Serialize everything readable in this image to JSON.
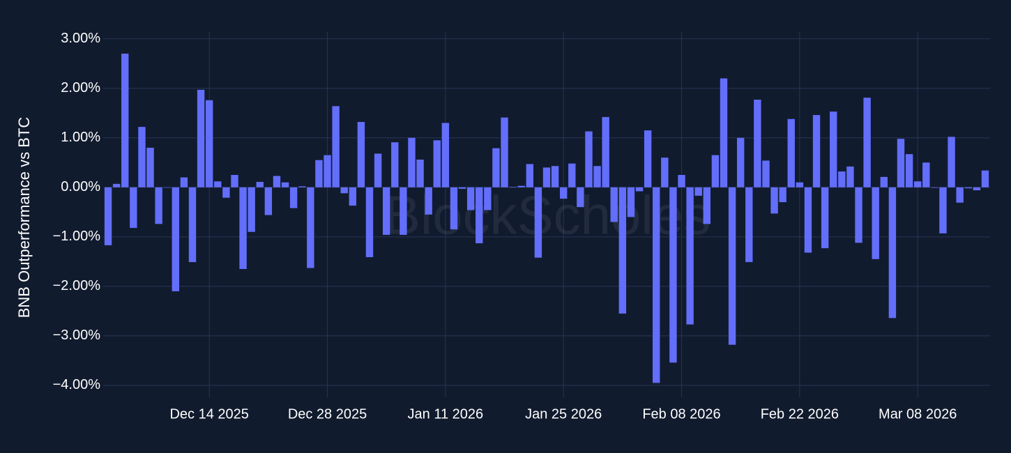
{
  "chart_data": {
    "type": "bar",
    "y_axis_title": "BNB Outperformance vs BTC",
    "watermark": "BlockScholes",
    "color": "#636efa",
    "grid": true,
    "x": [
      "2025-12-02",
      "2025-12-03",
      "2025-12-04",
      "2025-12-05",
      "2025-12-06",
      "2025-12-07",
      "2025-12-08",
      "2025-12-09",
      "2025-12-10",
      "2025-12-11",
      "2025-12-12",
      "2025-12-13",
      "2025-12-14",
      "2025-12-15",
      "2025-12-16",
      "2025-12-17",
      "2025-12-18",
      "2025-12-19",
      "2025-12-20",
      "2025-12-21",
      "2025-12-22",
      "2025-12-23",
      "2025-12-24",
      "2025-12-25",
      "2025-12-26",
      "2025-12-27",
      "2025-12-28",
      "2025-12-29",
      "2025-12-30",
      "2025-12-31",
      "2026-01-01",
      "2026-01-02",
      "2026-01-03",
      "2026-01-04",
      "2026-01-05",
      "2026-01-06",
      "2026-01-07",
      "2026-01-08",
      "2026-01-09",
      "2026-01-10",
      "2026-01-11",
      "2026-01-12",
      "2026-01-13",
      "2026-01-14",
      "2026-01-15",
      "2026-01-16",
      "2026-01-17",
      "2026-01-18",
      "2026-01-19",
      "2026-01-20",
      "2026-01-21",
      "2026-01-22",
      "2026-01-23",
      "2026-01-24",
      "2026-01-25",
      "2026-01-26",
      "2026-01-27",
      "2026-01-28",
      "2026-01-29",
      "2026-01-30",
      "2026-01-31",
      "2026-02-01",
      "2026-02-02",
      "2026-02-03",
      "2026-02-04",
      "2026-02-05",
      "2026-02-06",
      "2026-02-07",
      "2026-02-08",
      "2026-02-09",
      "2026-02-10",
      "2026-02-11",
      "2026-02-12",
      "2026-02-13",
      "2026-02-14",
      "2026-02-15",
      "2026-02-16",
      "2026-02-17",
      "2026-02-18",
      "2026-02-19",
      "2026-02-20",
      "2026-02-21",
      "2026-02-22",
      "2026-02-23",
      "2026-02-24",
      "2026-02-25",
      "2026-02-26",
      "2026-02-27",
      "2026-02-28",
      "2026-03-01",
      "2026-03-02",
      "2026-03-03",
      "2026-03-04",
      "2026-03-05",
      "2026-03-06",
      "2026-03-07",
      "2026-03-08",
      "2026-03-09",
      "2026-03-10",
      "2026-03-11",
      "2026-03-12",
      "2026-03-13",
      "2026-03-14",
      "2026-03-15",
      "2026-03-16"
    ],
    "values": [
      -1.17,
      0.07,
      2.7,
      -0.82,
      1.22,
      0.8,
      -0.74,
      0.0,
      -2.1,
      0.2,
      -1.51,
      1.97,
      1.76,
      0.12,
      -0.21,
      0.25,
      -1.65,
      -0.9,
      0.11,
      -0.56,
      0.23,
      0.1,
      -0.42,
      0.02,
      -1.63,
      0.55,
      0.65,
      1.64,
      -0.12,
      -0.37,
      1.32,
      -1.41,
      0.68,
      -0.96,
      0.91,
      -0.96,
      1.0,
      0.56,
      -0.55,
      0.95,
      1.3,
      -0.85,
      -0.03,
      -0.46,
      -1.13,
      -0.46,
      0.79,
      1.41,
      0.01,
      0.03,
      0.47,
      -1.42,
      0.4,
      0.43,
      -0.23,
      0.48,
      -0.4,
      1.13,
      0.43,
      1.42,
      -0.7,
      -2.55,
      -0.6,
      -0.08,
      1.15,
      -3.95,
      0.6,
      -3.54,
      0.25,
      -2.77,
      -0.17,
      -0.74,
      0.65,
      2.2,
      -3.18,
      1.0,
      -1.51,
      1.77,
      0.54,
      -0.53,
      -0.3,
      1.38,
      0.1,
      -1.32,
      1.46,
      -1.23,
      1.53,
      0.32,
      0.42,
      -1.12,
      1.81,
      -1.45,
      0.21,
      -2.64,
      0.98,
      0.67,
      0.12,
      0.5,
      -0.01,
      -0.93,
      1.02,
      -0.31,
      -0.02,
      -0.06,
      0.34
    ],
    "xlim": [
      "2025-12-01T10:00:00Z",
      "2026-03-16T14:00:00Z"
    ],
    "xticks": [
      {
        "value": "2025-12-14",
        "label": "Dec 14 2025"
      },
      {
        "value": "2025-12-28",
        "label": "Dec 28 2025"
      },
      {
        "value": "2026-01-11",
        "label": "Jan 11 2026"
      },
      {
        "value": "2026-01-25",
        "label": "Jan 25 2026"
      },
      {
        "value": "2026-02-08",
        "label": "Feb 08 2026"
      },
      {
        "value": "2026-02-22",
        "label": "Feb 22 2026"
      },
      {
        "value": "2026-03-08",
        "label": "Mar 08 2026"
      }
    ],
    "ylim": [
      -4.24,
      3.15
    ],
    "yticks": [
      {
        "value": 3,
        "label": "3.00%"
      },
      {
        "value": 2,
        "label": "2.00%"
      },
      {
        "value": 1,
        "label": "1.00%"
      },
      {
        "value": 0,
        "label": "0.00%"
      },
      {
        "value": -1,
        "label": "−1.00%"
      },
      {
        "value": -2,
        "label": "−2.00%"
      },
      {
        "value": -3,
        "label": "−3.00%"
      },
      {
        "value": -4,
        "label": "−4.00%"
      }
    ]
  }
}
